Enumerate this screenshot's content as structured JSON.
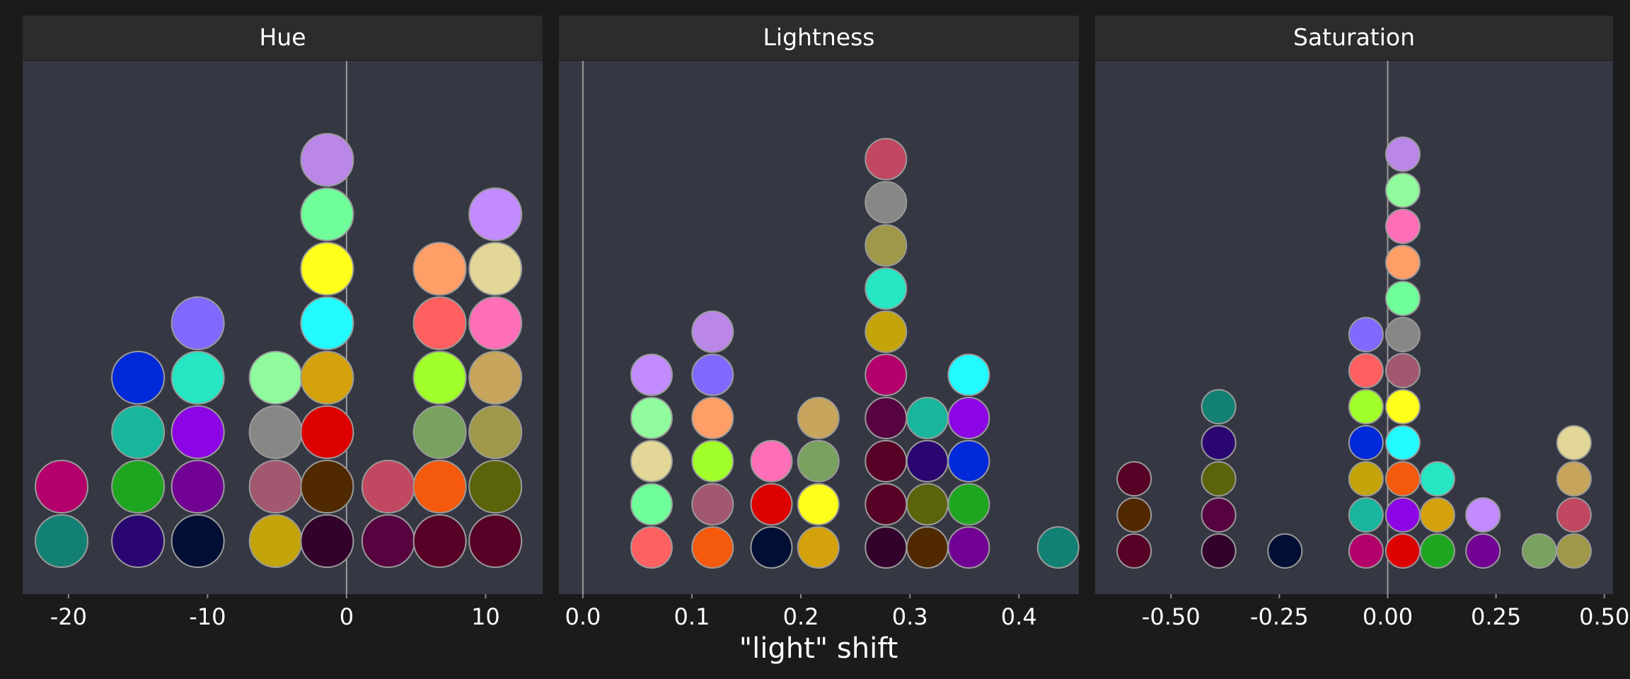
{
  "chart_data": {
    "type": "scatter",
    "style": "dot-plot",
    "xlabel": "\"light\" shift",
    "colors": {
      "figure_background": "#1b1b1b",
      "panel_background": "#353842",
      "strip_background": "#2c2c2c",
      "strip_text": "#ffffff",
      "tick_text": "#ffffff",
      "zero_line": "#9a9a9a",
      "dot_stroke": "#9a9a9a"
    },
    "facets": [
      {
        "title": "Hue",
        "xlim": [
          -23.3,
          14.1
        ],
        "ticks": [
          -20,
          -10,
          0,
          10
        ],
        "tick_labels": [
          "-20",
          "-10",
          "0",
          "10"
        ],
        "zero_line": 0,
        "columns": [
          {
            "x": -20.5,
            "colors": [
              "#128173",
              "#b3006a"
            ]
          },
          {
            "x": -15.0,
            "colors": [
              "#2a0770",
              "#1ea620",
              "#18b69c",
              "#0029da"
            ]
          },
          {
            "x": -10.7,
            "colors": [
              "#000f33",
              "#720294",
              "#8c05e4",
              "#26e6c3",
              "#8069ff"
            ]
          },
          {
            "x": -5.1,
            "colors": [
              "#c3a50b",
              "#a2586f",
              "#878786",
              "#8ffb9d"
            ]
          },
          {
            "x": -1.4,
            "colors": [
              "#32022d",
              "#512900",
              "#dd0101",
              "#d5a20b",
              "#22faff",
              "#ffff1c",
              "#6ffe9a",
              "#ba87e8"
            ]
          },
          {
            "x": 3.0,
            "colors": [
              "#560340",
              "#c24760"
            ]
          },
          {
            "x": 6.7,
            "colors": [
              "#560125",
              "#f5590c",
              "#79a15f",
              "#a1ff2a",
              "#ff5f5f",
              "#ff9e67"
            ]
          },
          {
            "x": 10.7,
            "colors": [
              "#560125",
              "#5b630b",
              "#9f9848",
              "#c8a55c",
              "#ff6fb8",
              "#e2d797",
              "#c28bff"
            ]
          }
        ]
      },
      {
        "title": "Lightness",
        "xlim": [
          -0.022,
          0.455
        ],
        "ticks": [
          0.0,
          0.1,
          0.2,
          0.3,
          0.4
        ],
        "tick_labels": [
          "0.0",
          "0.1",
          "0.2",
          "0.3",
          "0.4"
        ],
        "zero_line": 0,
        "columns": [
          {
            "x": 0.063,
            "colors": [
              "#ff6061",
              "#6ffe9a",
              "#e2d797",
              "#8ffb9d",
              "#c28bff"
            ]
          },
          {
            "x": 0.119,
            "colors": [
              "#f5590c",
              "#a2586f",
              "#a1ff2a",
              "#ff9e67",
              "#8069ff",
              "#ba87e8"
            ]
          },
          {
            "x": 0.173,
            "colors": [
              "#000f33",
              "#dd0101",
              "#ff6fb8"
            ]
          },
          {
            "x": 0.216,
            "colors": [
              "#d5a20b",
              "#ffff1c",
              "#79a15f",
              "#c8a55c"
            ]
          },
          {
            "x": 0.278,
            "colors": [
              "#32022d",
              "#560125",
              "#560125",
              "#560340",
              "#b3006a",
              "#c3a50b",
              "#26e6c3",
              "#9f9848",
              "#878786",
              "#c24760"
            ]
          },
          {
            "x": 0.316,
            "colors": [
              "#512900",
              "#5b630b",
              "#2a0770",
              "#18b69c"
            ]
          },
          {
            "x": 0.354,
            "colors": [
              "#720294",
              "#1ea620",
              "#0029da",
              "#8c05e4",
              "#22faff"
            ]
          },
          {
            "x": 0.436,
            "colors": [
              "#128173"
            ]
          }
        ]
      },
      {
        "title": "Saturation",
        "xlim": [
          -0.675,
          0.52
        ],
        "ticks": [
          -0.5,
          -0.25,
          0.0,
          0.25,
          0.5
        ],
        "tick_labels": [
          "-0.50",
          "-0.25",
          "0.00",
          "0.25",
          "0.50"
        ],
        "zero_line": 0,
        "columns": [
          {
            "x": -0.585,
            "colors": [
              "#560125",
              "#512900",
              "#560125"
            ]
          },
          {
            "x": -0.39,
            "colors": [
              "#32022d",
              "#560340",
              "#5b630b",
              "#2a0770",
              "#128173"
            ]
          },
          {
            "x": -0.237,
            "colors": [
              "#000f33"
            ]
          },
          {
            "x": -0.05,
            "colors": [
              "#b3006a",
              "#18b69c",
              "#c3a50b",
              "#0029da",
              "#a1ff2a",
              "#ff5f5f",
              "#8069ff"
            ]
          },
          {
            "x": 0.035,
            "colors": [
              "#dd0101",
              "#8c05e4",
              "#f5590c",
              "#22faff",
              "#ffff1c",
              "#a2586f",
              "#878786",
              "#6ffe9a",
              "#ff9e67",
              "#ff6fb8",
              "#8ffb9d",
              "#ba87e8"
            ]
          },
          {
            "x": 0.115,
            "colors": [
              "#1ea620",
              "#d5a20b",
              "#26e6c3"
            ]
          },
          {
            "x": 0.22,
            "colors": [
              "#720294",
              "#c28bff"
            ]
          },
          {
            "x": 0.35,
            "colors": [
              "#79a15f"
            ]
          },
          {
            "x": 0.43,
            "colors": [
              "#9f9848",
              "#c24760",
              "#c8a55c",
              "#e2d797"
            ]
          }
        ]
      }
    ]
  }
}
